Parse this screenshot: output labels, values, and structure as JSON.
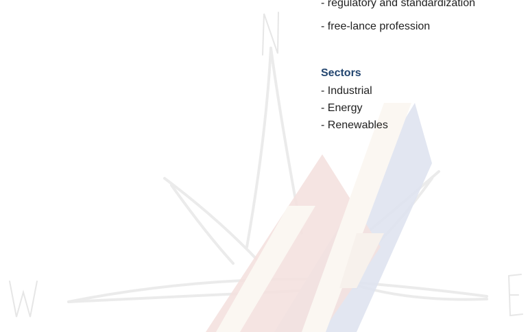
{
  "professions": {
    "items": [
      "- regulatory and standardization",
      "- free-lance profession"
    ]
  },
  "sectors": {
    "heading": "Sectors",
    "items": [
      "- Industrial",
      "- Energy",
      "- Renewables"
    ]
  },
  "watermark": {
    "icon": "compass-rose-icon",
    "letters": {
      "north": "N",
      "west": "W",
      "east": "E"
    },
    "colors": {
      "rose": "#ececec",
      "blue_band": "#dfe3f0",
      "red_band": "#f4e1df",
      "stripe": "#fbf7f2"
    }
  },
  "colors": {
    "heading": "#22456f",
    "text": "#1f1f1f"
  }
}
